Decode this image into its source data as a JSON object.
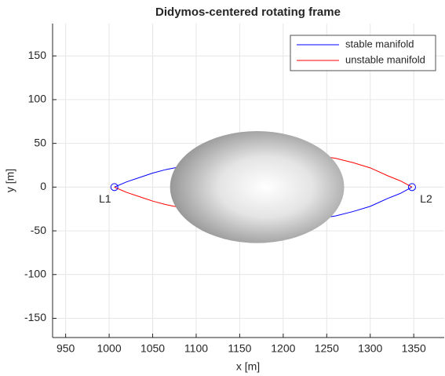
{
  "chart_data": {
    "type": "line",
    "title": "Didymos-centered rotating frame",
    "xlabel": "x [m]",
    "ylabel": "y [m]",
    "xlim": [
      935,
      1385
    ],
    "ylim": [
      -172,
      187
    ],
    "xticks": [
      950,
      1000,
      1050,
      1100,
      1150,
      1200,
      1250,
      1300,
      1350
    ],
    "yticks": [
      -150,
      -100,
      -50,
      0,
      50,
      100,
      150
    ],
    "grid": true,
    "legend": "upper right",
    "series": [
      {
        "name": "stable manifold",
        "color": "#0000ff",
        "x": [
          1006,
          1020,
          1035,
          1050,
          1065,
          1080,
          null,
          1240,
          1260,
          1280,
          1300,
          1320,
          1335,
          1348
        ],
        "values": [
          0,
          6,
          11,
          16,
          20,
          23,
          null,
          -36,
          -33,
          -28,
          -22,
          -13,
          -7,
          0
        ]
      },
      {
        "name": "unstable manifold",
        "color": "#ff0000",
        "x": [
          1006,
          1020,
          1035,
          1050,
          1065,
          1080,
          null,
          1240,
          1260,
          1280,
          1300,
          1320,
          1335,
          1348
        ],
        "values": [
          0,
          -6,
          -11,
          -16,
          -20,
          -23,
          null,
          36,
          33,
          28,
          22,
          13,
          7,
          0
        ]
      }
    ],
    "points": [
      {
        "label": "L1",
        "x": 1006,
        "y": 0
      },
      {
        "label": "L2",
        "x": 1348,
        "y": 0
      }
    ],
    "body": {
      "center": [
        1170,
        0
      ],
      "radii": [
        100,
        64
      ]
    }
  }
}
